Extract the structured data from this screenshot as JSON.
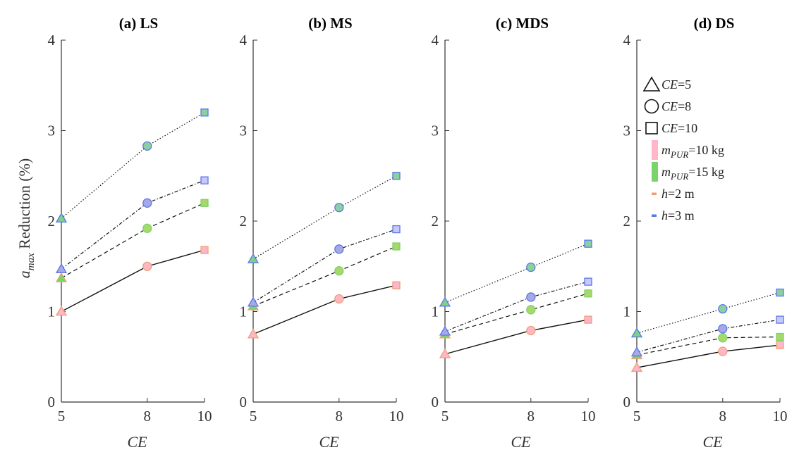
{
  "ylabel": {
    "symbol": "a",
    "sub": "max",
    "rest": " Reduction (%)"
  },
  "colors": {
    "pink": "#ffb6c8",
    "green": "#7ad46a",
    "orange": "#f0a070",
    "blue": "#5a78e8",
    "triangle_fill": "#a7a8e6",
    "circle_fill": "#a8d86a",
    "square_fill": "#8ad0a0"
  },
  "chart_data": [
    {
      "type": "line",
      "title": "(a) LS",
      "xlabel": "CE",
      "x": [
        5,
        8,
        10
      ],
      "xticks": [
        "5",
        "8",
        "10"
      ],
      "yticks": [
        "0",
        "1",
        "2",
        "3",
        "4"
      ],
      "ylim": [
        0,
        4
      ],
      "series": [
        {
          "values": [
            1.0,
            1.5,
            1.68
          ]
        },
        {
          "values": [
            1.37,
            1.92,
            2.2
          ]
        },
        {
          "values": [
            1.47,
            2.2,
            2.45
          ]
        },
        {
          "values": [
            2.03,
            2.83,
            3.2
          ]
        }
      ]
    },
    {
      "type": "line",
      "title": "(b) MS",
      "xlabel": "CE",
      "x": [
        5,
        8,
        10
      ],
      "xticks": [
        "5",
        "8",
        "10"
      ],
      "yticks": [
        "0",
        "1",
        "2",
        "3",
        "4"
      ],
      "ylim": [
        0,
        4
      ],
      "series": [
        {
          "values": [
            0.75,
            1.14,
            1.29
          ]
        },
        {
          "values": [
            1.06,
            1.45,
            1.72
          ]
        },
        {
          "values": [
            1.1,
            1.69,
            1.91
          ]
        },
        {
          "values": [
            1.58,
            2.15,
            2.5
          ]
        }
      ]
    },
    {
      "type": "line",
      "title": "(c) MDS",
      "xlabel": "CE",
      "x": [
        5,
        8,
        10
      ],
      "xticks": [
        "5",
        "8",
        "10"
      ],
      "yticks": [
        "0",
        "1",
        "2",
        "3",
        "4"
      ],
      "ylim": [
        0,
        4
      ],
      "series": [
        {
          "values": [
            0.53,
            0.79,
            0.91
          ]
        },
        {
          "values": [
            0.75,
            1.02,
            1.2
          ]
        },
        {
          "values": [
            0.78,
            1.16,
            1.33
          ]
        },
        {
          "values": [
            1.1,
            1.49,
            1.75
          ]
        }
      ]
    },
    {
      "type": "line",
      "title": "(d) DS",
      "xlabel": "CE",
      "x": [
        5,
        8,
        10
      ],
      "xticks": [
        "5",
        "8",
        "10"
      ],
      "yticks": [
        "0",
        "1",
        "2",
        "3",
        "4"
      ],
      "ylim": [
        0,
        4
      ],
      "series": [
        {
          "values": [
            0.38,
            0.56,
            0.63
          ]
        },
        {
          "values": [
            0.52,
            0.71,
            0.72
          ]
        },
        {
          "values": [
            0.55,
            0.81,
            0.91
          ]
        },
        {
          "values": [
            0.76,
            1.03,
            1.21
          ]
        }
      ]
    }
  ],
  "legend": {
    "placement": "top-right",
    "items": [
      {
        "kind": "triangle",
        "pre": "CE",
        "post": "=5"
      },
      {
        "kind": "circle",
        "pre": "CE",
        "post": "=8"
      },
      {
        "kind": "square",
        "pre": "CE",
        "post": "=10"
      },
      {
        "kind": "swatch-pink",
        "pre": "m",
        "sub": "PUR",
        "post": "=10 kg"
      },
      {
        "kind": "swatch-green",
        "pre": "m",
        "sub": "PUR",
        "post": "=15 kg"
      },
      {
        "kind": "dash-orange",
        "pre": "h",
        "post": "=2 m"
      },
      {
        "kind": "dash-blue",
        "pre": "h",
        "post": "=3 m"
      }
    ]
  }
}
